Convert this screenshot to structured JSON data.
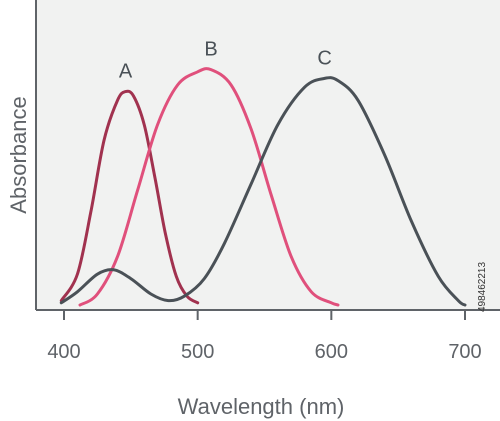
{
  "chart_data": {
    "type": "line",
    "xlabel": "Wavelength (nm)",
    "ylabel": "Absorbance",
    "xlim": [
      390,
      710
    ],
    "ylim": [
      0,
      1.1
    ],
    "x_ticks": [
      "400",
      "500",
      "600",
      "700"
    ],
    "grid": false,
    "legend": "none",
    "background_color": "#f1f2f1",
    "axis_color": "#5f6368",
    "series": [
      {
        "name": "A",
        "color": "#a1324f",
        "points": [
          [
            398,
            0.02
          ],
          [
            410,
            0.14
          ],
          [
            420,
            0.42
          ],
          [
            430,
            0.75
          ],
          [
            440,
            0.93
          ],
          [
            446,
            0.97
          ],
          [
            452,
            0.95
          ],
          [
            460,
            0.82
          ],
          [
            468,
            0.58
          ],
          [
            476,
            0.32
          ],
          [
            484,
            0.13
          ],
          [
            492,
            0.04
          ],
          [
            500,
            0.01
          ]
        ]
      },
      {
        "name": "B",
        "color": "#e0507c",
        "points": [
          [
            412,
            0.0
          ],
          [
            425,
            0.05
          ],
          [
            440,
            0.22
          ],
          [
            455,
            0.52
          ],
          [
            470,
            0.82
          ],
          [
            485,
            1.0
          ],
          [
            500,
            1.06
          ],
          [
            510,
            1.07
          ],
          [
            525,
            1.0
          ],
          [
            540,
            0.8
          ],
          [
            555,
            0.5
          ],
          [
            570,
            0.22
          ],
          [
            585,
            0.06
          ],
          [
            600,
            0.01
          ],
          [
            605,
            0.0
          ]
        ]
      },
      {
        "name": "C",
        "color": "#4a5157",
        "points": [
          [
            398,
            0.01
          ],
          [
            410,
            0.06
          ],
          [
            425,
            0.14
          ],
          [
            437,
            0.16
          ],
          [
            450,
            0.12
          ],
          [
            465,
            0.05
          ],
          [
            478,
            0.02
          ],
          [
            490,
            0.04
          ],
          [
            505,
            0.12
          ],
          [
            520,
            0.28
          ],
          [
            540,
            0.55
          ],
          [
            560,
            0.82
          ],
          [
            580,
            0.99
          ],
          [
            595,
            1.03
          ],
          [
            605,
            1.02
          ],
          [
            620,
            0.93
          ],
          [
            640,
            0.68
          ],
          [
            660,
            0.38
          ],
          [
            680,
            0.13
          ],
          [
            695,
            0.02
          ],
          [
            700,
            0.0
          ]
        ]
      }
    ]
  },
  "watermark": {
    "id_text": "498462213"
  }
}
